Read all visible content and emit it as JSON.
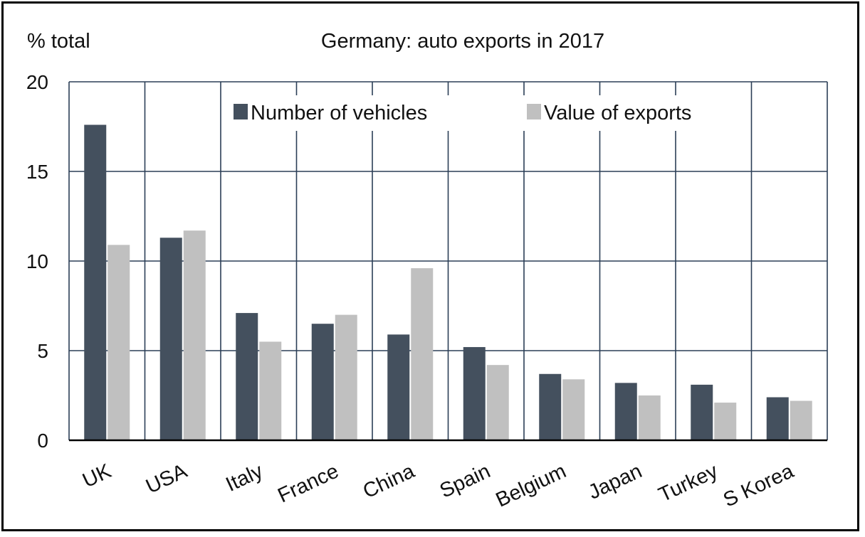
{
  "chart_data": {
    "type": "bar",
    "title": "Germany: auto exports in 2017",
    "ylabel": "% total",
    "xlabel": "",
    "ylim": [
      0,
      20
    ],
    "yticks": [
      0,
      5,
      10,
      15,
      20
    ],
    "grid": true,
    "legend_position": "top",
    "categories": [
      "UK",
      "USA",
      "Italy",
      "France",
      "China",
      "Spain",
      "Belgium",
      "Japan",
      "Turkey",
      "S Korea"
    ],
    "series": [
      {
        "name": "Number of vehicles",
        "color": "#44505e",
        "values": [
          17.6,
          11.3,
          7.1,
          6.5,
          5.9,
          5.2,
          3.7,
          3.2,
          3.1,
          2.4
        ]
      },
      {
        "name": "Value of exports",
        "color": "#c0c0c0",
        "values": [
          10.9,
          11.7,
          5.5,
          7.0,
          9.6,
          4.2,
          3.4,
          2.5,
          2.1,
          2.2
        ]
      }
    ]
  }
}
